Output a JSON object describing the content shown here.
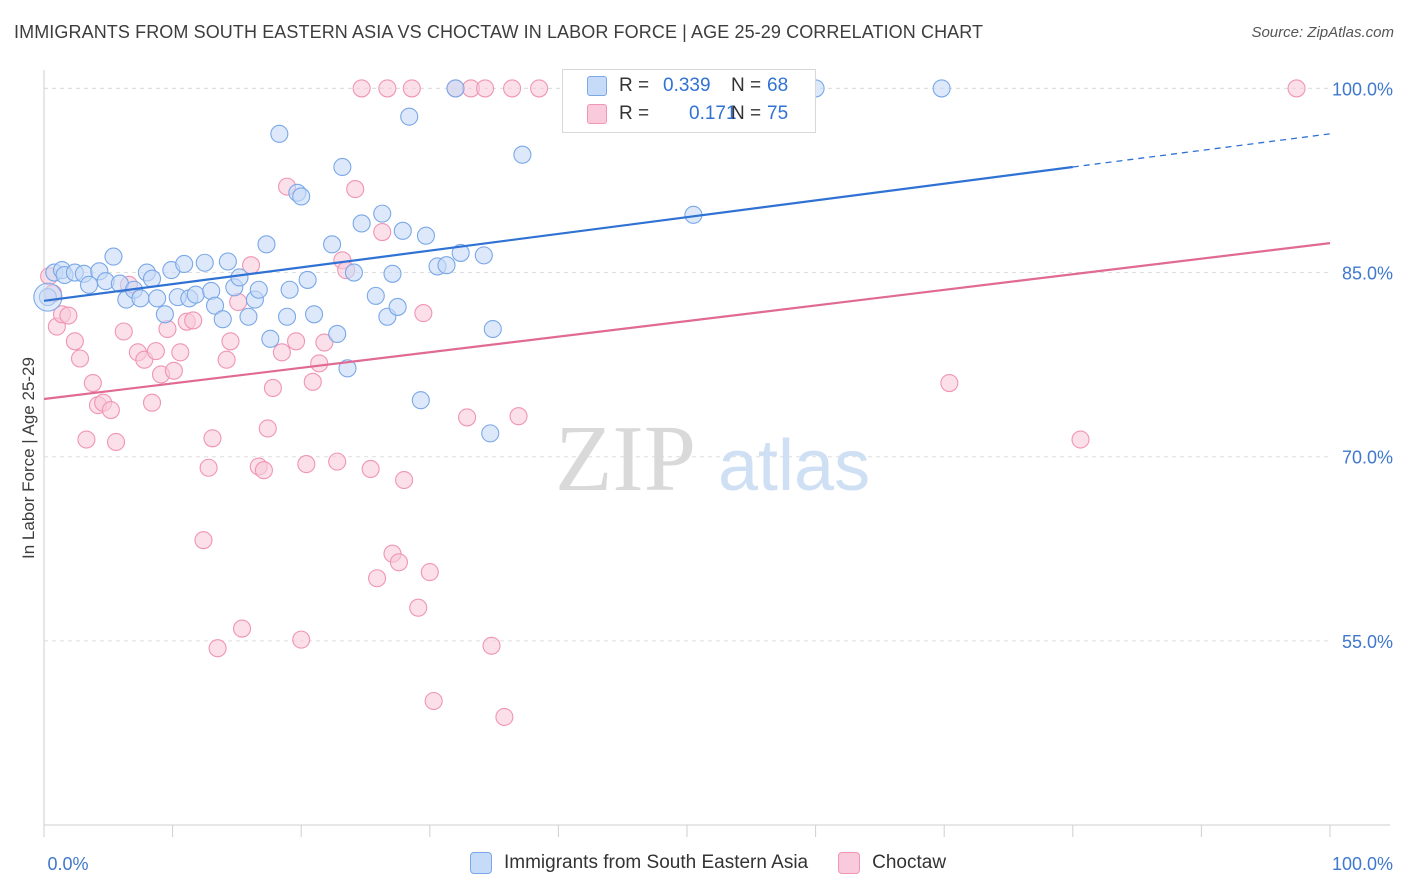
{
  "title": "IMMIGRANTS FROM SOUTH EASTERN ASIA VS CHOCTAW IN LABOR FORCE | AGE 25-29 CORRELATION CHART",
  "source": "Source: ZipAtlas.com",
  "watermark": {
    "zip": "ZIP",
    "atlas": "atlas"
  },
  "legend_top": {
    "r_label": "R =",
    "n_label": "N =",
    "rows": [
      {
        "r": "0.339",
        "n": "68"
      },
      {
        "r": "0.171",
        "n": "75"
      }
    ]
  },
  "chart_data": {
    "type": "scatter",
    "title": "IMMIGRANTS FROM SOUTH EASTERN ASIA VS CHOCTAW IN LABOR FORCE | AGE 25-29 CORRELATION CHART",
    "xlabel": "",
    "ylabel": "In Labor Force | Age 25-29",
    "xlim": [
      0,
      100
    ],
    "ylim": [
      40,
      101.5
    ],
    "x_tick_labels": [
      "0.0%",
      "100.0%"
    ],
    "y_ticks": [
      55,
      70,
      85,
      100
    ],
    "y_tick_labels": [
      "55.0%",
      "70.0%",
      "85.0%",
      "100.0%"
    ],
    "grid": true,
    "legend_position": "bottom",
    "series": [
      {
        "name": "Immigrants from South Eastern Asia",
        "color": "#7aa8e8",
        "fill": "#c6dbf7",
        "line_color": "#2f72d4",
        "trend": {
          "x0": 0,
          "y0": 82.7,
          "x1": 80,
          "y1": 93.6,
          "dashed_to_x": 100,
          "dashed_to_y": 96.3
        },
        "points": [
          [
            0.3,
            83.0
          ],
          [
            0.8,
            85.0
          ],
          [
            1.4,
            85.2
          ],
          [
            1.6,
            84.8
          ],
          [
            2.4,
            85.0
          ],
          [
            3.1,
            84.9
          ],
          [
            3.5,
            84.0
          ],
          [
            4.3,
            85.1
          ],
          [
            4.8,
            84.3
          ],
          [
            5.4,
            86.3
          ],
          [
            5.9,
            84.1
          ],
          [
            6.4,
            82.8
          ],
          [
            7.0,
            83.6
          ],
          [
            7.5,
            82.9
          ],
          [
            8.0,
            85.0
          ],
          [
            8.4,
            84.5
          ],
          [
            8.8,
            82.9
          ],
          [
            9.4,
            81.6
          ],
          [
            9.9,
            85.2
          ],
          [
            10.4,
            83.0
          ],
          [
            10.9,
            85.7
          ],
          [
            11.3,
            82.9
          ],
          [
            11.8,
            83.2
          ],
          [
            12.5,
            85.8
          ],
          [
            13.0,
            83.5
          ],
          [
            13.3,
            82.3
          ],
          [
            13.9,
            81.2
          ],
          [
            14.3,
            85.9
          ],
          [
            14.8,
            83.8
          ],
          [
            15.2,
            84.6
          ],
          [
            15.9,
            81.4
          ],
          [
            16.4,
            82.8
          ],
          [
            16.7,
            83.6
          ],
          [
            17.3,
            87.3
          ],
          [
            17.6,
            79.6
          ],
          [
            18.3,
            96.3
          ],
          [
            18.9,
            81.4
          ],
          [
            19.1,
            83.6
          ],
          [
            19.7,
            91.5
          ],
          [
            20.0,
            91.2
          ],
          [
            20.5,
            84.4
          ],
          [
            21.0,
            81.6
          ],
          [
            22.4,
            87.3
          ],
          [
            22.8,
            80.0
          ],
          [
            23.2,
            93.6
          ],
          [
            23.6,
            77.2
          ],
          [
            24.1,
            85.0
          ],
          [
            24.7,
            89.0
          ],
          [
            25.8,
            83.1
          ],
          [
            26.3,
            89.8
          ],
          [
            26.7,
            81.4
          ],
          [
            27.1,
            84.9
          ],
          [
            27.5,
            82.2
          ],
          [
            27.9,
            88.4
          ],
          [
            28.4,
            97.7
          ],
          [
            29.3,
            74.6
          ],
          [
            29.7,
            88.0
          ],
          [
            30.6,
            85.5
          ],
          [
            31.3,
            85.6
          ],
          [
            32.0,
            100.0
          ],
          [
            32.4,
            86.6
          ],
          [
            34.2,
            86.4
          ],
          [
            34.7,
            71.9
          ],
          [
            34.9,
            80.4
          ],
          [
            37.2,
            94.6
          ],
          [
            50.5,
            89.7
          ],
          [
            60.0,
            100.0
          ],
          [
            69.8,
            100.0
          ]
        ]
      },
      {
        "name": "Choctaw",
        "color": "#f095b4",
        "fill": "#f9cadb",
        "line_color": "#e06a93",
        "trend": {
          "x0": 0,
          "y0": 74.7,
          "x1": 100,
          "y1": 87.4
        },
        "points": [
          [
            0.4,
            84.7
          ],
          [
            0.7,
            83.3
          ],
          [
            1.0,
            80.6
          ],
          [
            1.4,
            81.6
          ],
          [
            1.9,
            81.5
          ],
          [
            2.4,
            79.4
          ],
          [
            2.8,
            78.0
          ],
          [
            3.3,
            71.4
          ],
          [
            3.8,
            76.0
          ],
          [
            4.2,
            74.2
          ],
          [
            4.6,
            74.4
          ],
          [
            5.2,
            73.8
          ],
          [
            5.6,
            71.2
          ],
          [
            6.2,
            80.2
          ],
          [
            6.6,
            84.0
          ],
          [
            7.3,
            78.5
          ],
          [
            7.8,
            77.9
          ],
          [
            8.4,
            74.4
          ],
          [
            8.7,
            78.6
          ],
          [
            9.1,
            76.7
          ],
          [
            9.6,
            80.4
          ],
          [
            10.1,
            77.0
          ],
          [
            10.6,
            78.5
          ],
          [
            11.1,
            81.0
          ],
          [
            11.6,
            81.1
          ],
          [
            12.4,
            63.2
          ],
          [
            12.8,
            69.1
          ],
          [
            13.1,
            71.5
          ],
          [
            13.5,
            54.4
          ],
          [
            14.2,
            77.9
          ],
          [
            14.5,
            79.4
          ],
          [
            15.1,
            82.6
          ],
          [
            15.4,
            56.0
          ],
          [
            16.1,
            85.6
          ],
          [
            16.7,
            69.2
          ],
          [
            17.1,
            68.9
          ],
          [
            17.4,
            72.3
          ],
          [
            17.8,
            75.6
          ],
          [
            18.5,
            78.5
          ],
          [
            18.9,
            92.0
          ],
          [
            19.6,
            79.4
          ],
          [
            20.0,
            55.1
          ],
          [
            20.4,
            69.4
          ],
          [
            20.9,
            76.1
          ],
          [
            21.4,
            77.6
          ],
          [
            21.8,
            79.3
          ],
          [
            22.8,
            69.6
          ],
          [
            23.2,
            86.0
          ],
          [
            23.5,
            85.2
          ],
          [
            24.2,
            91.8
          ],
          [
            24.7,
            100.0
          ],
          [
            25.4,
            69.0
          ],
          [
            25.9,
            60.1
          ],
          [
            26.3,
            88.3
          ],
          [
            26.7,
            100.0
          ],
          [
            27.1,
            62.1
          ],
          [
            27.6,
            61.4
          ],
          [
            28.0,
            68.1
          ],
          [
            28.6,
            100.0
          ],
          [
            29.1,
            57.7
          ],
          [
            29.5,
            81.7
          ],
          [
            30.0,
            60.6
          ],
          [
            30.3,
            50.1
          ],
          [
            32.0,
            100.0
          ],
          [
            32.9,
            73.2
          ],
          [
            33.2,
            100.0
          ],
          [
            34.3,
            100.0
          ],
          [
            34.8,
            54.6
          ],
          [
            35.8,
            48.8
          ],
          [
            36.4,
            100.0
          ],
          [
            36.9,
            73.3
          ],
          [
            38.5,
            100.0
          ],
          [
            70.4,
            76.0
          ],
          [
            80.6,
            71.4
          ],
          [
            97.4,
            100.0
          ]
        ]
      }
    ]
  }
}
